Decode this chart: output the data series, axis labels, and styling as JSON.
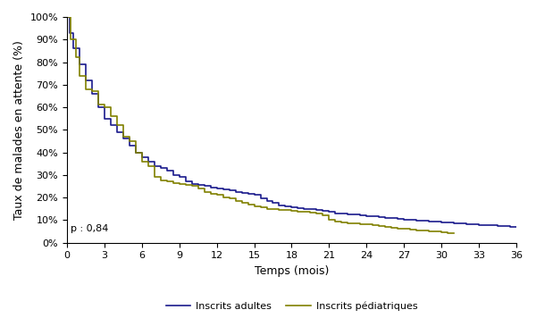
{
  "title": "",
  "xlabel": "Temps (mois)",
  "ylabel": "Taux de malades en attente (%)",
  "xlim": [
    0,
    36
  ],
  "ylim": [
    0,
    1.0
  ],
  "xticks": [
    0,
    3,
    6,
    9,
    12,
    15,
    18,
    21,
    24,
    27,
    30,
    33,
    36
  ],
  "yticks": [
    0.0,
    0.1,
    0.2,
    0.3,
    0.4,
    0.5,
    0.6,
    0.7,
    0.8,
    0.9,
    1.0
  ],
  "annotation": "p : 0,84",
  "color_adult": "#1a1a8c",
  "color_pediatric": "#808000",
  "legend_adult": "Inscrits adultes",
  "legend_pediatric": "Inscrits pédiatriques",
  "adult_t": [
    0,
    0.2,
    0.5,
    1,
    1.5,
    2,
    2.5,
    3,
    3.5,
    4,
    4.5,
    5,
    5.5,
    6,
    6.5,
    7,
    7.5,
    8,
    8.5,
    9,
    9.5,
    10,
    10.5,
    11,
    11.5,
    12,
    12.5,
    13,
    13.5,
    14,
    14.5,
    15,
    15.5,
    16,
    16.5,
    17,
    17.5,
    18,
    18.5,
    19,
    19.5,
    20,
    20.5,
    21,
    21.5,
    22,
    22.5,
    23,
    23.5,
    24,
    24.5,
    25,
    25.5,
    26,
    26.5,
    27,
    27.5,
    28,
    28.5,
    29,
    29.5,
    30,
    30.5,
    31,
    31.5,
    32,
    32.5,
    33,
    33.5,
    34,
    34.5,
    35,
    35.5,
    36
  ],
  "adult_s": [
    1.0,
    0.93,
    0.86,
    0.79,
    0.72,
    0.66,
    0.6,
    0.55,
    0.52,
    0.49,
    0.46,
    0.43,
    0.4,
    0.38,
    0.36,
    0.34,
    0.33,
    0.32,
    0.3,
    0.29,
    0.27,
    0.26,
    0.255,
    0.25,
    0.245,
    0.24,
    0.235,
    0.23,
    0.225,
    0.22,
    0.215,
    0.21,
    0.195,
    0.185,
    0.175,
    0.165,
    0.16,
    0.155,
    0.152,
    0.15,
    0.148,
    0.145,
    0.14,
    0.135,
    0.13,
    0.128,
    0.125,
    0.123,
    0.12,
    0.118,
    0.115,
    0.113,
    0.11,
    0.108,
    0.105,
    0.103,
    0.1,
    0.098,
    0.096,
    0.094,
    0.092,
    0.09,
    0.088,
    0.086,
    0.084,
    0.082,
    0.08,
    0.079,
    0.078,
    0.076,
    0.074,
    0.072,
    0.07,
    0.068
  ],
  "ped_t": [
    0,
    0.3,
    0.7,
    1,
    1.5,
    2,
    2.5,
    3,
    3.5,
    4,
    4.5,
    5,
    5.5,
    6,
    6.5,
    7,
    7.5,
    8,
    8.5,
    9,
    9.5,
    10,
    10.5,
    11,
    11.5,
    12,
    12.5,
    13,
    13.5,
    14,
    14.5,
    15,
    15.5,
    16,
    16.5,
    17,
    17.5,
    18,
    18.5,
    19,
    19.5,
    20,
    20.5,
    21,
    21.5,
    22,
    22.5,
    23,
    23.5,
    24,
    24.5,
    25,
    25.5,
    26,
    26.5,
    27,
    27.5,
    28,
    28.5,
    29,
    29.5,
    30,
    30.5,
    31
  ],
  "ped_s": [
    1.0,
    0.9,
    0.82,
    0.74,
    0.68,
    0.67,
    0.61,
    0.6,
    0.56,
    0.52,
    0.47,
    0.45,
    0.4,
    0.36,
    0.34,
    0.29,
    0.275,
    0.27,
    0.265,
    0.26,
    0.255,
    0.25,
    0.24,
    0.225,
    0.215,
    0.21,
    0.2,
    0.195,
    0.185,
    0.175,
    0.17,
    0.16,
    0.155,
    0.15,
    0.148,
    0.145,
    0.143,
    0.14,
    0.138,
    0.135,
    0.133,
    0.13,
    0.12,
    0.1,
    0.095,
    0.09,
    0.087,
    0.085,
    0.082,
    0.08,
    0.078,
    0.072,
    0.068,
    0.065,
    0.063,
    0.06,
    0.058,
    0.055,
    0.052,
    0.05,
    0.048,
    0.045,
    0.043,
    0.04
  ]
}
